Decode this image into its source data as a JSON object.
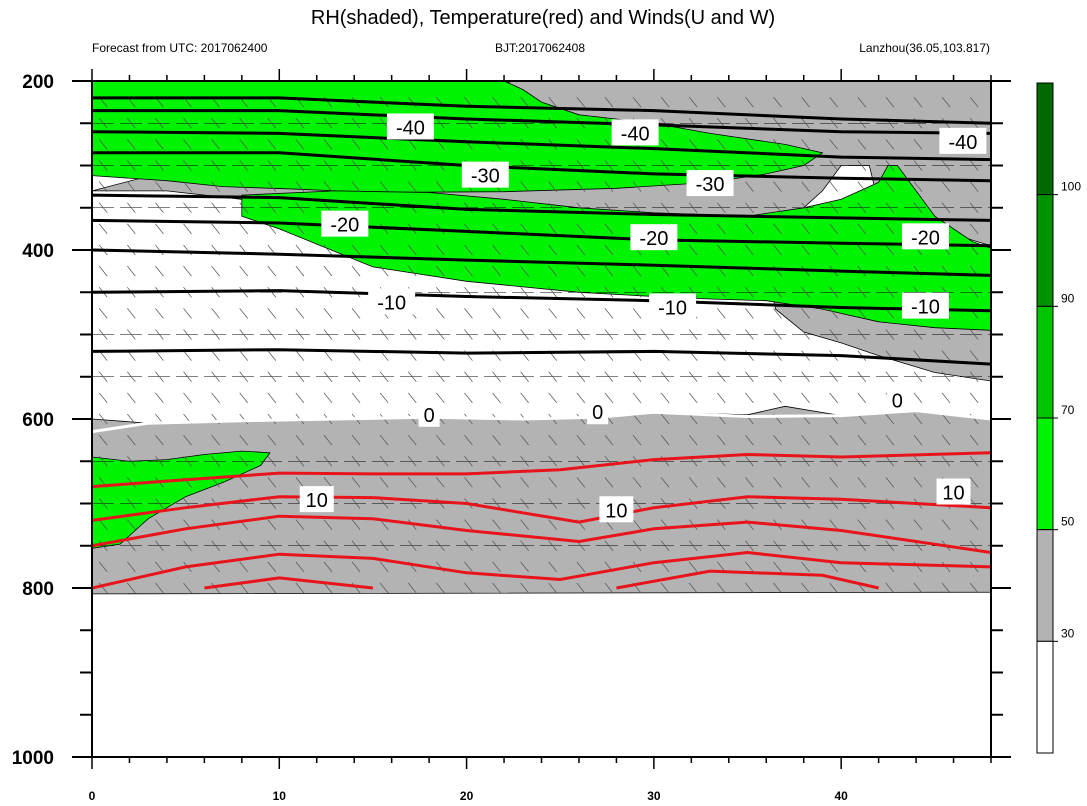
{
  "title": "RH(shaded), Temperature(red) and Winds(U and W)",
  "subtitle_left": "Forecast from UTC: 2017062400",
  "subtitle_center": "BJT:2017062408",
  "subtitle_right": "Lanzhou(36.05,103.817)",
  "chart_data": {
    "type": "contour",
    "x_range": [
      0,
      48
    ],
    "x_ticks": [
      0,
      10,
      20,
      30,
      40
    ],
    "y_range": [
      200,
      1000
    ],
    "y_ticks": [
      200,
      400,
      600,
      800,
      1000
    ],
    "y_reversed": true,
    "colorbar": {
      "levels": [
        30,
        50,
        70,
        90,
        100
      ],
      "colors": [
        "#ffffff",
        "#b3b3b3",
        "#00f300",
        "#00c400",
        "#009300",
        "#006a00"
      ]
    },
    "rh_regions": [
      {
        "level": 30,
        "color": "#b3b3b3",
        "points": [
          [
            0,
            600
          ],
          [
            3,
            605
          ],
          [
            8,
            602
          ],
          [
            13,
            600
          ],
          [
            18,
            598
          ],
          [
            23,
            600
          ],
          [
            27,
            598
          ],
          [
            30,
            592
          ],
          [
            35,
            595
          ],
          [
            37,
            585
          ],
          [
            40,
            596
          ],
          [
            44,
            590
          ],
          [
            48,
            600
          ],
          [
            48,
            805
          ],
          [
            0,
            807
          ]
        ]
      },
      {
        "level": 30,
        "color": "#b3b3b3",
        "points": [
          [
            22.5,
            200
          ],
          [
            48,
            200
          ],
          [
            48,
            395
          ],
          [
            46.5,
            385
          ],
          [
            44,
            370
          ],
          [
            42,
            345
          ],
          [
            41.5,
            300
          ],
          [
            40,
            300
          ],
          [
            39,
            330
          ],
          [
            37.5,
            360
          ],
          [
            32,
            375
          ],
          [
            26,
            362
          ],
          [
            20,
            355
          ],
          [
            15,
            352
          ],
          [
            12,
            345
          ],
          [
            8,
            340
          ],
          [
            4,
            330
          ],
          [
            0,
            330
          ]
        ]
      },
      {
        "level": 30,
        "color": "#b3b3b3",
        "points": [
          [
            38,
            395
          ],
          [
            41,
            405
          ],
          [
            44,
            420
          ],
          [
            47,
            430
          ],
          [
            48,
            430
          ],
          [
            48,
            555
          ],
          [
            45,
            545
          ],
          [
            42,
            525
          ],
          [
            40,
            510
          ],
          [
            38,
            497
          ],
          [
            36.5,
            470
          ],
          [
            36,
            420
          ],
          [
            37,
            400
          ]
        ]
      },
      {
        "level": 50,
        "color": "#00f300",
        "points": [
          [
            0,
            200
          ],
          [
            22,
            200
          ],
          [
            23,
            210
          ],
          [
            24,
            225
          ],
          [
            26,
            240
          ],
          [
            30,
            250
          ],
          [
            33,
            262
          ],
          [
            37,
            275
          ],
          [
            39,
            285
          ],
          [
            38,
            300
          ],
          [
            36,
            310
          ],
          [
            33,
            320
          ],
          [
            28,
            327
          ],
          [
            22,
            331
          ],
          [
            15,
            332
          ],
          [
            11,
            328
          ],
          [
            7,
            325
          ],
          [
            4,
            318
          ],
          [
            0,
            312
          ]
        ]
      },
      {
        "level": 50,
        "color": "#00f300",
        "points": [
          [
            8,
            335
          ],
          [
            13,
            330
          ],
          [
            18,
            332
          ],
          [
            22,
            340
          ],
          [
            26,
            350
          ],
          [
            30,
            356
          ],
          [
            35,
            360
          ],
          [
            38,
            350
          ],
          [
            40,
            340
          ],
          [
            42,
            320
          ],
          [
            42.5,
            300
          ],
          [
            43,
            300
          ],
          [
            44,
            330
          ],
          [
            45,
            360
          ],
          [
            47,
            390
          ],
          [
            48,
            398
          ],
          [
            48,
            495
          ],
          [
            45,
            492
          ],
          [
            42,
            485
          ],
          [
            39,
            470
          ],
          [
            36,
            460
          ],
          [
            33,
            458
          ],
          [
            30,
            455
          ],
          [
            26,
            450
          ],
          [
            20,
            437
          ],
          [
            15,
            420
          ],
          [
            10,
            375
          ],
          [
            8,
            360
          ]
        ]
      },
      {
        "level": 50,
        "color": "#00f300",
        "points": [
          [
            0,
            645
          ],
          [
            2,
            650
          ],
          [
            4,
            648
          ],
          [
            6,
            642
          ],
          [
            8,
            638
          ],
          [
            9.5,
            640
          ],
          [
            9,
            655
          ],
          [
            7,
            675
          ],
          [
            5,
            692
          ],
          [
            3,
            718
          ],
          [
            1.5,
            748
          ],
          [
            0,
            753
          ]
        ]
      }
    ],
    "temperature_contours_black": [
      {
        "label": -40,
        "points": [
          [
            0,
            220
          ],
          [
            10,
            220
          ],
          [
            20,
            230
          ],
          [
            30,
            235
          ],
          [
            40,
            245
          ],
          [
            48,
            250
          ]
        ]
      },
      {
        "label": -40,
        "points": [
          [
            0,
            235
          ],
          [
            10,
            235
          ],
          [
            20,
            245
          ],
          [
            30,
            252
          ],
          [
            40,
            260
          ],
          [
            48,
            262
          ]
        ]
      },
      {
        "label": -30,
        "points": [
          [
            0,
            260
          ],
          [
            10,
            262
          ],
          [
            20,
            272
          ],
          [
            30,
            280
          ],
          [
            40,
            290
          ],
          [
            48,
            293
          ]
        ]
      },
      {
        "label": -30,
        "points": [
          [
            0,
            285
          ],
          [
            10,
            285
          ],
          [
            20,
            300
          ],
          [
            30,
            310
          ],
          [
            40,
            315
          ],
          [
            48,
            318
          ]
        ]
      },
      {
        "label": -20,
        "points": [
          [
            0,
            335
          ],
          [
            10,
            338
          ],
          [
            20,
            352
          ],
          [
            30,
            358
          ],
          [
            40,
            362
          ],
          [
            48,
            365
          ]
        ]
      },
      {
        "label": -20,
        "points": [
          [
            0,
            365
          ],
          [
            10,
            368
          ],
          [
            20,
            378
          ],
          [
            30,
            388
          ],
          [
            40,
            392
          ],
          [
            48,
            395
          ]
        ]
      },
      {
        "label": -10,
        "points": [
          [
            0,
            400
          ],
          [
            10,
            405
          ],
          [
            20,
            412
          ],
          [
            30,
            418
          ],
          [
            40,
            425
          ],
          [
            48,
            430
          ]
        ]
      },
      {
        "label": -10,
        "points": [
          [
            0,
            450
          ],
          [
            10,
            448
          ],
          [
            20,
            455
          ],
          [
            30,
            460
          ],
          [
            40,
            468
          ],
          [
            48,
            472
          ]
        ]
      },
      {
        "label": 0,
        "points": [
          [
            0,
            520
          ],
          [
            10,
            518
          ],
          [
            20,
            522
          ],
          [
            30,
            520
          ],
          [
            40,
            525
          ],
          [
            48,
            535
          ]
        ]
      }
    ],
    "temperature_contours_red": [
      {
        "label": 10,
        "points": [
          [
            0,
            680
          ],
          [
            5,
            672
          ],
          [
            10,
            664
          ],
          [
            15,
            665
          ],
          [
            20,
            665
          ],
          [
            25,
            660
          ],
          [
            30,
            648
          ],
          [
            35,
            642
          ],
          [
            40,
            645
          ],
          [
            48,
            640
          ]
        ]
      },
      {
        "label": 10,
        "points": [
          [
            0,
            720
          ],
          [
            5,
            705
          ],
          [
            10,
            692
          ],
          [
            15,
            693
          ],
          [
            20,
            700
          ],
          [
            26,
            722
          ],
          [
            30,
            705
          ],
          [
            35,
            692
          ],
          [
            40,
            695
          ],
          [
            48,
            705
          ]
        ]
      },
      {
        "label": 10,
        "points": [
          [
            0,
            750
          ],
          [
            5,
            730
          ],
          [
            10,
            715
          ],
          [
            15,
            718
          ],
          [
            20,
            732
          ],
          [
            26,
            745
          ],
          [
            30,
            730
          ],
          [
            35,
            722
          ],
          [
            40,
            732
          ],
          [
            48,
            758
          ]
        ]
      },
      {
        "label": 10,
        "points": [
          [
            0,
            800
          ],
          [
            5,
            775
          ],
          [
            10,
            760
          ],
          [
            15,
            765
          ],
          [
            20,
            782
          ],
          [
            25,
            790
          ],
          [
            30,
            770
          ],
          [
            35,
            758
          ],
          [
            40,
            770
          ],
          [
            48,
            775
          ]
        ]
      },
      {
        "label": 10,
        "points": [
          [
            6,
            800
          ],
          [
            10,
            788
          ],
          [
            15,
            800
          ]
        ]
      },
      {
        "label": 10,
        "points": [
          [
            28,
            800
          ],
          [
            33,
            780
          ],
          [
            39,
            785
          ],
          [
            42,
            800
          ]
        ]
      }
    ],
    "zero_line_white": {
      "label": 0,
      "points": [
        [
          0,
          615
        ],
        [
          3,
          605
        ],
        [
          8,
          602
        ],
        [
          13,
          600
        ],
        [
          18,
          598
        ],
        [
          23,
          600
        ],
        [
          27,
          598
        ],
        [
          30,
          592
        ],
        [
          35,
          597
        ],
        [
          40,
          596
        ],
        [
          44,
          590
        ],
        [
          48,
          600
        ]
      ]
    },
    "contour_labels": [
      {
        "text": "-40",
        "x": 17,
        "y": 255
      },
      {
        "text": "-40",
        "x": 29,
        "y": 262
      },
      {
        "text": "-40",
        "x": 46.5,
        "y": 272
      },
      {
        "text": "-30",
        "x": 21,
        "y": 312
      },
      {
        "text": "-30",
        "x": 33,
        "y": 322
      },
      {
        "text": "-20",
        "x": 13.5,
        "y": 370
      },
      {
        "text": "-20",
        "x": 30,
        "y": 386
      },
      {
        "text": "-20",
        "x": 44.5,
        "y": 385
      },
      {
        "text": "-10",
        "x": 16,
        "y": 462
      },
      {
        "text": "-10",
        "x": 31,
        "y": 468
      },
      {
        "text": "-10",
        "x": 44.5,
        "y": 467
      },
      {
        "text": "0",
        "x": 18,
        "y": 595
      },
      {
        "text": "0",
        "x": 27,
        "y": 592
      },
      {
        "text": "0",
        "x": 43,
        "y": 578
      },
      {
        "text": "10",
        "x": 12,
        "y": 696
      },
      {
        "text": "10",
        "x": 28,
        "y": 708
      },
      {
        "text": "10",
        "x": 46,
        "y": 687
      }
    ]
  }
}
